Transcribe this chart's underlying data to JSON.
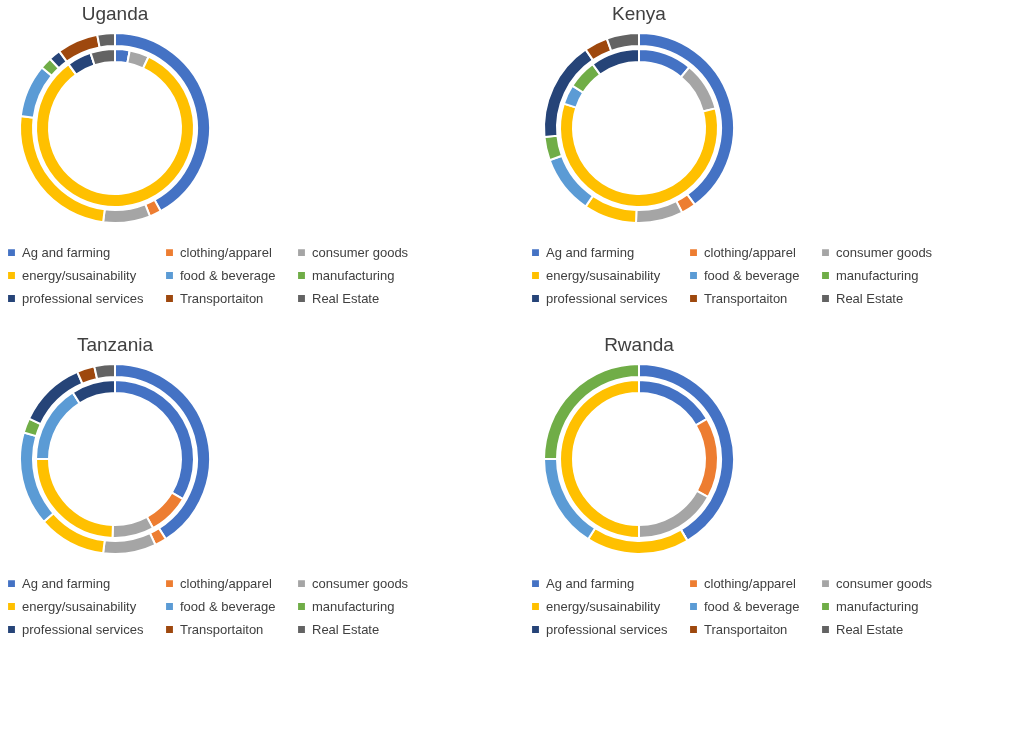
{
  "chart_data": [
    {
      "type": "donut",
      "title": "Uganda",
      "legend": "bottom",
      "categories": [
        "Ag and farming",
        "clothing/apparel",
        "consumer goods",
        "energy/susainability",
        "food & beverage",
        "manufacturing",
        "professional services",
        "Transportaiton",
        "Real Estate"
      ],
      "colors": [
        "#4472c4",
        "#ed7d31",
        "#a5a5a5",
        "#ffc000",
        "#5b9bd5",
        "#70ad47",
        "#264478",
        "#9e480e",
        "#636363"
      ],
      "series": [
        {
          "values": [
            42,
            2,
            8,
            25,
            9,
            2,
            2,
            7,
            3
          ]
        },
        {
          "values": [
            3,
            0,
            4,
            83,
            0,
            0,
            5,
            0,
            5
          ]
        }
      ]
    },
    {
      "type": "donut",
      "title": "Kenya",
      "legend": "bottom",
      "categories": [
        "Ag and farming",
        "clothing/apparel",
        "consumer goods",
        "energy/susainability",
        "food & beverage",
        "manufacturing",
        "professional services",
        "Transportaiton",
        "Real Estate"
      ],
      "colors": [
        "#4472c4",
        "#ed7d31",
        "#a5a5a5",
        "#ffc000",
        "#5b9bd5",
        "#70ad47",
        "#264478",
        "#9e480e",
        "#636363"
      ],
      "series": [
        {
          "values": [
            40,
            2.5,
            8,
            9,
            10,
            4,
            17,
            4,
            5.5
          ]
        },
        {
          "values": [
            11,
            0,
            10,
            59,
            4,
            6,
            10,
            0,
            0
          ]
        }
      ]
    },
    {
      "type": "donut",
      "title": "Tanzania",
      "legend": "bottom",
      "categories": [
        "Ag and farming",
        "clothing/apparel",
        "consumer goods",
        "energy/susainability",
        "food & beverage",
        "manufacturing",
        "professional services",
        "Transportaiton",
        "Real Estate"
      ],
      "colors": [
        "#4472c4",
        "#ed7d31",
        "#a5a5a5",
        "#ffc000",
        "#5b9bd5",
        "#70ad47",
        "#264478",
        "#9e480e",
        "#636363"
      ],
      "series": [
        {
          "values": [
            41,
            2,
            9,
            11.5,
            16,
            2.5,
            11.5,
            3,
            3.5
          ]
        },
        {
          "values": [
            33.5,
            8.5,
            8.5,
            24.5,
            16,
            0,
            9,
            0,
            0
          ]
        }
      ]
    },
    {
      "type": "donut",
      "title": "Rwanda",
      "legend": "bottom",
      "categories": [
        "Ag and farming",
        "clothing/apparel",
        "consumer goods",
        "energy/susainability",
        "food & beverage",
        "manufacturing",
        "professional services",
        "Transportaiton",
        "Real Estate"
      ],
      "colors": [
        "#4472c4",
        "#ed7d31",
        "#a5a5a5",
        "#ffc000",
        "#5b9bd5",
        "#70ad47",
        "#264478",
        "#9e480e",
        "#636363"
      ],
      "series": [
        {
          "values": [
            41.5,
            0,
            0,
            17.5,
            16,
            25,
            0,
            0,
            0
          ]
        },
        {
          "values": [
            16.5,
            16.5,
            17,
            50,
            0,
            0,
            0,
            0,
            0
          ]
        }
      ]
    }
  ]
}
